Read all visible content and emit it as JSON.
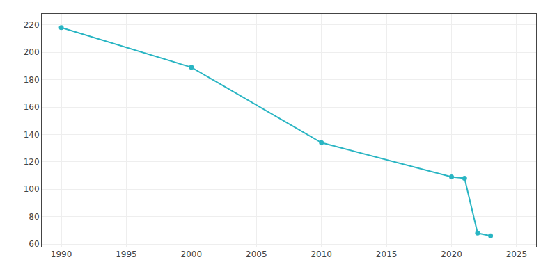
{
  "chart_data": {
    "type": "line",
    "x": [
      1990,
      2000,
      2010,
      2020,
      2021,
      2022,
      2023
    ],
    "values": [
      218,
      189,
      134,
      109,
      108,
      68,
      66
    ],
    "color": "#29b5c3",
    "marker": "circle",
    "xlim": [
      1988.5,
      2026.5
    ],
    "ylim": [
      58,
      228
    ],
    "xticks": [
      1990,
      1995,
      2000,
      2005,
      2010,
      2015,
      2020,
      2025
    ],
    "yticks": [
      60,
      80,
      100,
      120,
      140,
      160,
      180,
      200,
      220
    ],
    "grid": true
  }
}
